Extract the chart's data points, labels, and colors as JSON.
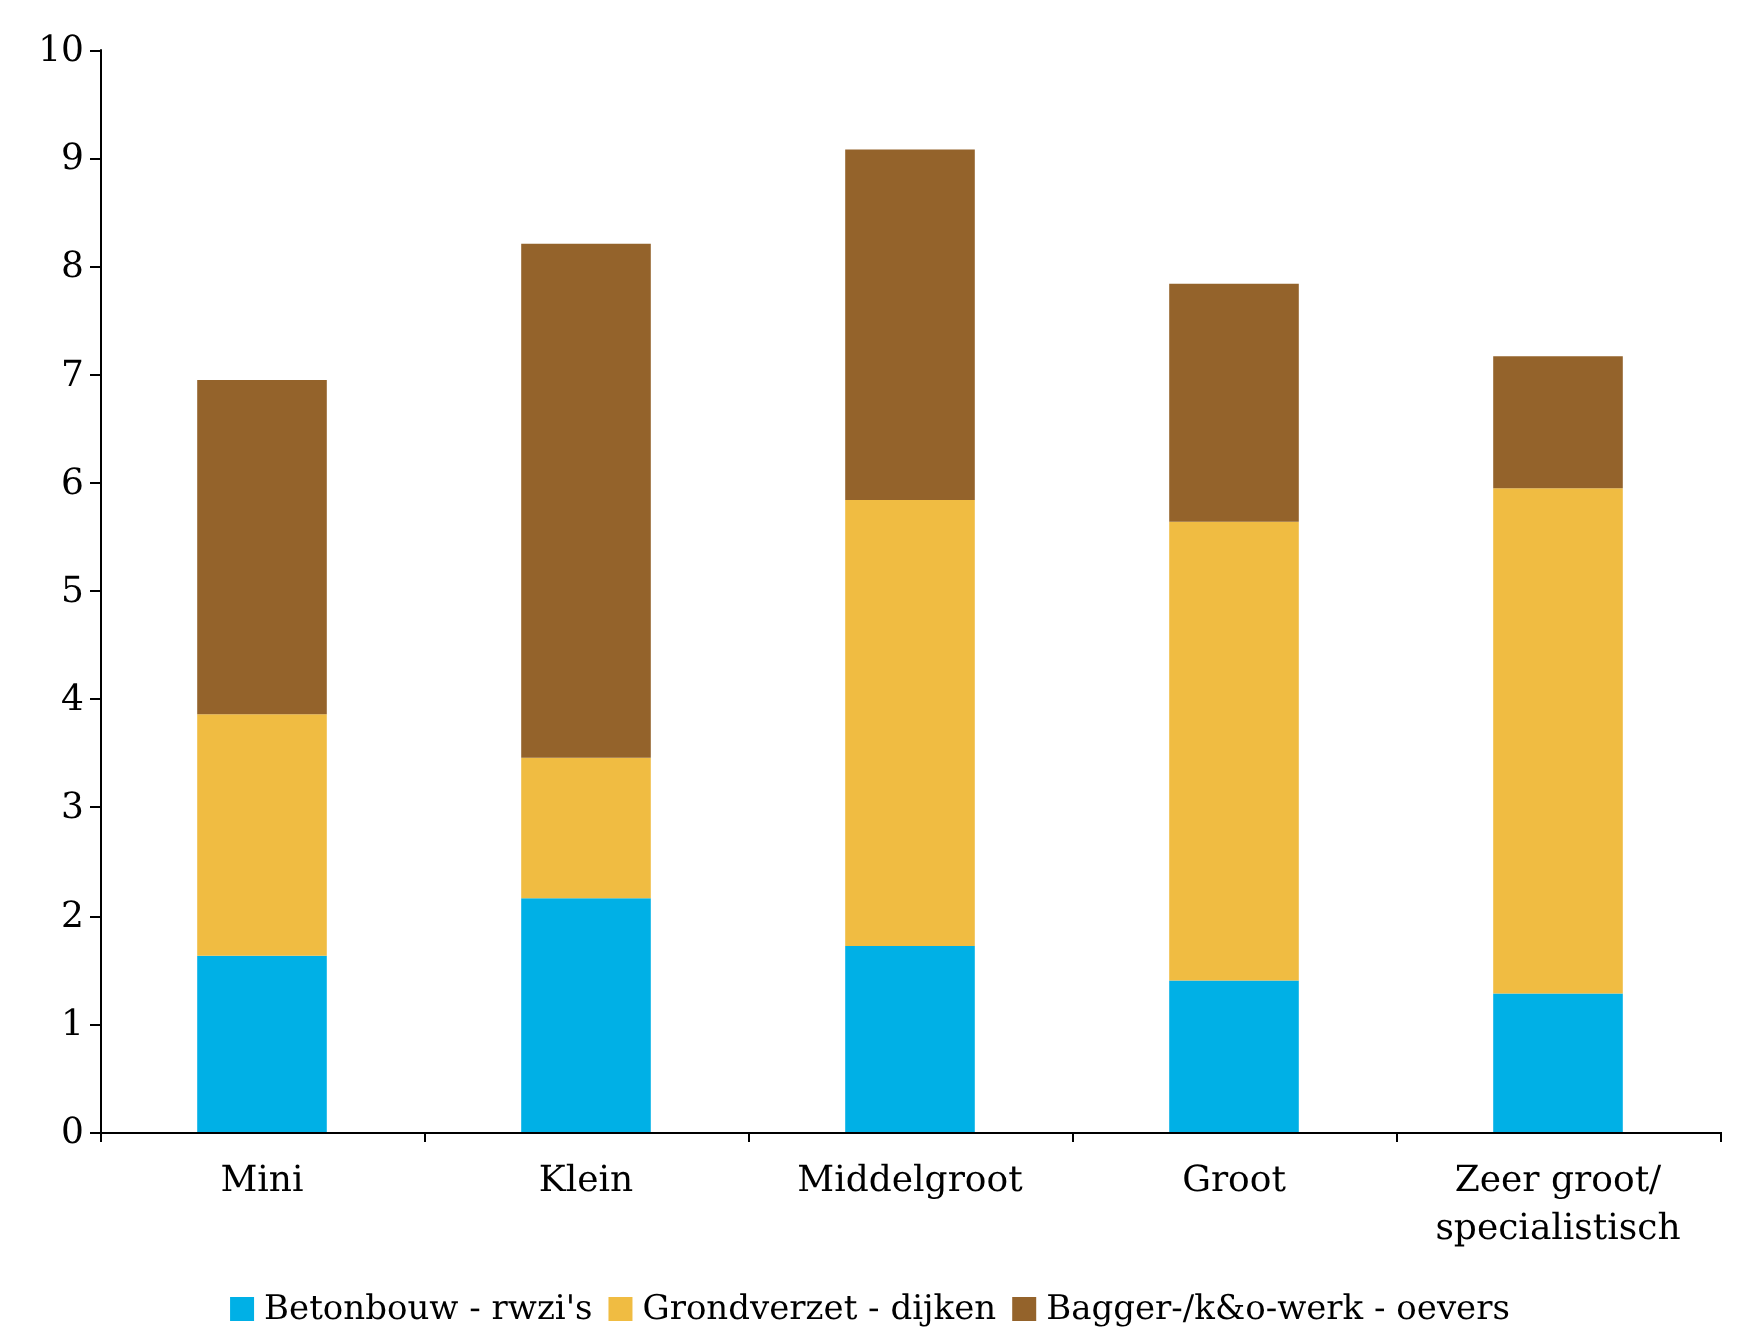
{
  "chart_data": {
    "type": "bar",
    "stacked": true,
    "categories": [
      "Mini",
      "Klein",
      "Middelgroot",
      "Groot",
      "Zeer groot/\nspecialistisch"
    ],
    "series": [
      {
        "name": "Betonbouw - rwzi's",
        "color": "#00b0e6",
        "values": [
          1.63,
          2.16,
          1.72,
          1.4,
          1.28
        ]
      },
      {
        "name": "Grondverzet - dijken",
        "color": "#f0bc42",
        "values": [
          2.23,
          1.3,
          4.12,
          4.24,
          4.67
        ]
      },
      {
        "name": "Bagger-/k&o-werk - oevers",
        "color": "#94632b",
        "values": [
          3.09,
          4.75,
          3.24,
          2.2,
          1.22
        ]
      }
    ],
    "ylim": [
      0,
      10
    ],
    "yticks": [
      0,
      1,
      2,
      3,
      4,
      5,
      6,
      7,
      8,
      9,
      10
    ],
    "grid": false,
    "legend": "bottom"
  }
}
